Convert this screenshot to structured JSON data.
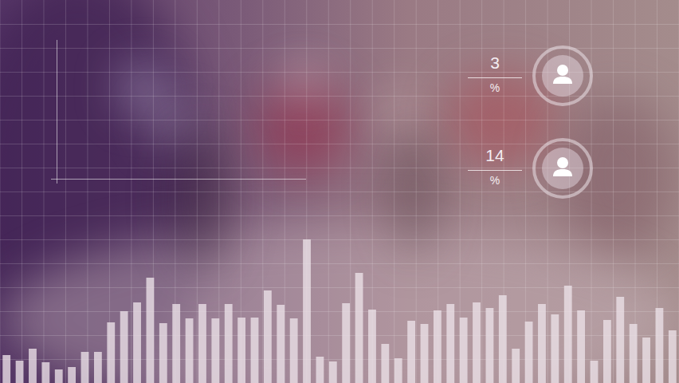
{
  "chart_data": {
    "type": "bar",
    "categories": [
      null,
      null,
      null,
      null,
      null,
      null,
      null,
      null,
      null,
      null,
      null,
      null,
      null,
      null,
      null,
      null,
      null,
      null,
      null,
      null,
      null,
      null,
      null,
      null,
      null,
      null,
      null,
      null,
      null,
      null,
      null,
      null,
      null,
      null,
      null,
      null,
      null,
      null,
      null,
      null,
      null,
      null,
      null,
      null,
      null,
      null,
      null,
      null,
      null,
      null,
      null,
      null
    ],
    "values": [
      35,
      28,
      43,
      26,
      17,
      20,
      39,
      39,
      76,
      90,
      101,
      132,
      75,
      99,
      81,
      99,
      81,
      99,
      82,
      82,
      116,
      98,
      81,
      180,
      33,
      27,
      100,
      138,
      92,
      49,
      31,
      78,
      74,
      91,
      99,
      82,
      101,
      94,
      110,
      43,
      77,
      99,
      86,
      122,
      91,
      28,
      79,
      108,
      74,
      57,
      94,
      66
    ],
    "color": "#ece2e8",
    "ylim": [
      0,
      480
    ],
    "yticks": [
      0,
      30,
      60,
      90,
      120,
      150,
      180,
      210,
      240,
      270,
      300,
      330,
      360,
      390,
      420,
      450,
      480
    ],
    "grid": true,
    "tick_labels": false
  },
  "stats": [
    {
      "value": "3",
      "unit": "%"
    },
    {
      "value": "14",
      "unit": "%"
    }
  ]
}
